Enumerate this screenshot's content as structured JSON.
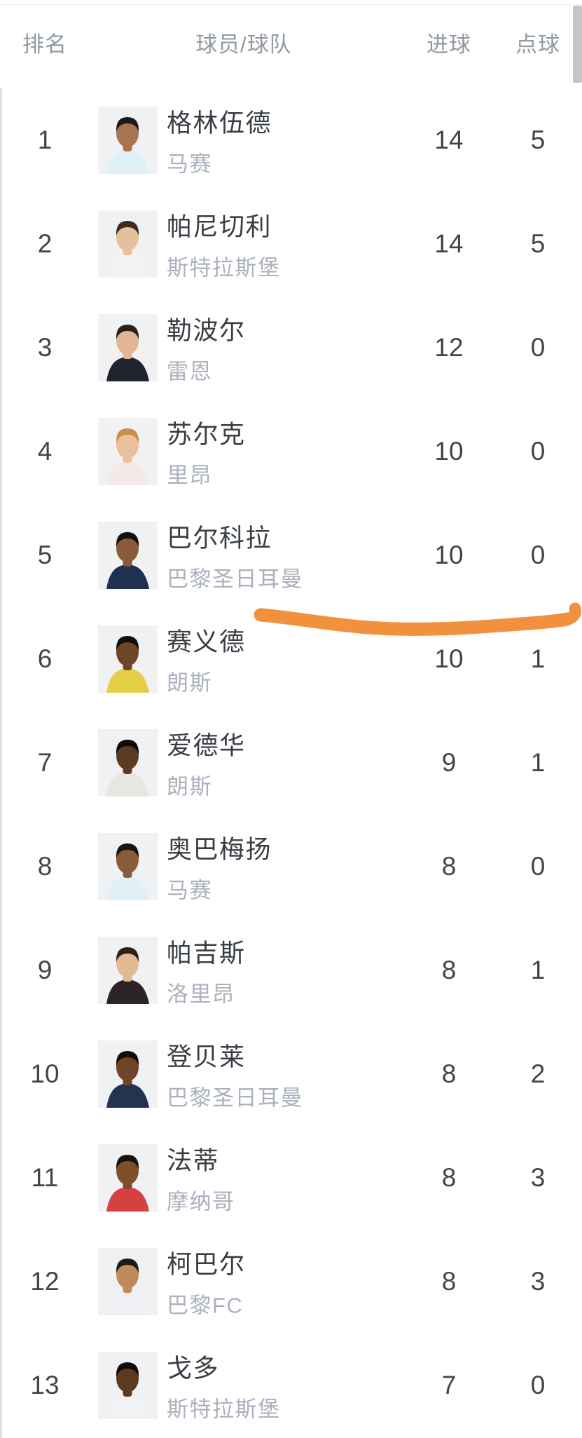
{
  "table": {
    "headers": [
      "排名",
      "球员/球队",
      "进球",
      "点球"
    ],
    "rows": [
      {
        "rank": "1",
        "player": "格林伍德",
        "team": "马赛",
        "goals": "14",
        "penalties": "5",
        "avatar": {
          "skin": "#a97450",
          "hair": "#1f1a16",
          "shirt": "#dff0f7"
        }
      },
      {
        "rank": "2",
        "player": "帕尼切利",
        "team": "斯特拉斯堡",
        "goals": "14",
        "penalties": "5",
        "avatar": {
          "skin": "#e6c09c",
          "hair": "#3a2c20",
          "shirt": "#f2f2f2"
        }
      },
      {
        "rank": "3",
        "player": "勒波尔",
        "team": "雷恩",
        "goals": "12",
        "penalties": "0",
        "avatar": {
          "skin": "#e2b694",
          "hair": "#2b2118",
          "shirt": "#20242e"
        }
      },
      {
        "rank": "4",
        "player": "苏尔克",
        "team": "里昂",
        "goals": "10",
        "penalties": "0",
        "avatar": {
          "skin": "#eabf9b",
          "hair": "#c98e4f",
          "shirt": "#f3eae8"
        }
      },
      {
        "rank": "5",
        "player": "巴尔科拉",
        "team": "巴黎圣日耳曼",
        "goals": "10",
        "penalties": "0",
        "avatar": {
          "skin": "#8a5a3a",
          "hair": "#15100c",
          "shirt": "#1f3050"
        }
      },
      {
        "rank": "6",
        "player": "赛义德",
        "team": "朗斯",
        "goals": "10",
        "penalties": "1",
        "avatar": {
          "skin": "#6f4527",
          "hair": "#120d09",
          "shirt": "#e3cf46"
        }
      },
      {
        "rank": "7",
        "player": "爱德华",
        "team": "朗斯",
        "goals": "9",
        "penalties": "1",
        "avatar": {
          "skin": "#5c3a22",
          "hair": "#0f0b08",
          "shirt": "#e8e6e2"
        }
      },
      {
        "rank": "8",
        "player": "奥巴梅扬",
        "team": "马赛",
        "goals": "8",
        "penalties": "0",
        "avatar": {
          "skin": "#8a5a3a",
          "hair": "#1a1410",
          "shirt": "#dff0f7"
        }
      },
      {
        "rank": "9",
        "player": "帕吉斯",
        "team": "洛里昂",
        "goals": "8",
        "penalties": "1",
        "avatar": {
          "skin": "#e3b894",
          "hair": "#2b2118",
          "shirt": "#2d2429"
        }
      },
      {
        "rank": "10",
        "player": "登贝莱",
        "team": "巴黎圣日耳曼",
        "goals": "8",
        "penalties": "2",
        "avatar": {
          "skin": "#6f4527",
          "hair": "#120d09",
          "shirt": "#233450"
        }
      },
      {
        "rank": "11",
        "player": "法蒂",
        "team": "摩纳哥",
        "goals": "8",
        "penalties": "3",
        "avatar": {
          "skin": "#7d4f2c",
          "hair": "#1a1410",
          "shirt": "#d64040"
        }
      },
      {
        "rank": "12",
        "player": "柯巴尔",
        "team": "巴黎FC",
        "goals": "8",
        "penalties": "3",
        "avatar": {
          "skin": "#c08a5c",
          "hair": "#1f1a16",
          "shirt": "#eef0f4"
        }
      },
      {
        "rank": "13",
        "player": "戈多",
        "team": "斯特拉斯堡",
        "goals": "7",
        "penalties": "0",
        "avatar": {
          "skin": "#5c3a22",
          "hair": "#0f0b08",
          "shirt": "#f2f2f4"
        }
      }
    ]
  },
  "annotation": {
    "marker_color": "#f2913d"
  },
  "ui": {
    "scrollbar_color": "#c5c5c5"
  },
  "colors": {
    "background": "#ffffff",
    "header_text": "#9199a4",
    "primary_text": "#3c4147",
    "secondary_text": "#abb1bd"
  }
}
